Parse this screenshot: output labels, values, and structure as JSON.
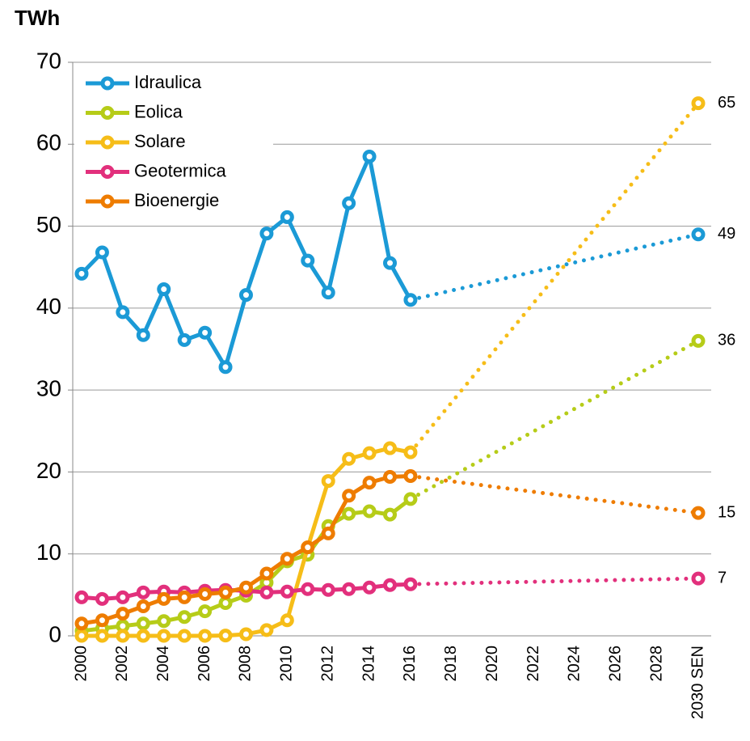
{
  "chart_data": {
    "type": "line",
    "y_label": "TWh",
    "categories": [
      "2000",
      null,
      "2002",
      null,
      "2004",
      null,
      "2006",
      null,
      "2008",
      null,
      "2010",
      null,
      "2012",
      null,
      "2014",
      null,
      "2016",
      null,
      "2018",
      null,
      "2020",
      null,
      "2022",
      null,
      "2024",
      null,
      "2026",
      null,
      "2028",
      null,
      "2030 SEN"
    ],
    "ylim": [
      0,
      70
    ],
    "yticks": [
      0,
      10,
      20,
      30,
      40,
      50,
      60,
      70
    ],
    "grid": true,
    "legend": "upper left",
    "series": [
      {
        "name": "Idraulica",
        "color": "#1b9ad6",
        "values": [
          44.2,
          46.8,
          39.5,
          36.7,
          42.3,
          36.1,
          37.0,
          32.8,
          41.6,
          49.1,
          51.1,
          45.8,
          41.9,
          52.8,
          58.5,
          45.5,
          41.0,
          null,
          null,
          null,
          null,
          null,
          null,
          null,
          null,
          null,
          null,
          null,
          null,
          null,
          49
        ]
      },
      {
        "name": "Eolica",
        "color": "#b6cc18",
        "values": [
          0.6,
          0.9,
          1.2,
          1.5,
          1.8,
          2.3,
          3.0,
          4.0,
          4.9,
          6.5,
          9.1,
          9.9,
          13.4,
          14.9,
          15.2,
          14.8,
          16.7,
          null,
          null,
          null,
          null,
          null,
          null,
          null,
          null,
          null,
          null,
          null,
          null,
          null,
          36
        ]
      },
      {
        "name": "Solare",
        "color": "#f6bd18",
        "values": [
          0,
          0,
          0,
          0,
          0,
          0,
          0,
          0.04,
          0.2,
          0.7,
          1.9,
          10.8,
          18.9,
          21.6,
          22.3,
          22.9,
          22.4,
          null,
          null,
          null,
          null,
          null,
          null,
          null,
          null,
          null,
          null,
          null,
          null,
          null,
          65
        ]
      },
      {
        "name": "Geotermica",
        "color": "#e2307c",
        "values": [
          4.7,
          4.5,
          4.7,
          5.3,
          5.4,
          5.3,
          5.5,
          5.6,
          5.5,
          5.3,
          5.4,
          5.7,
          5.6,
          5.7,
          5.9,
          6.2,
          6.3,
          null,
          null,
          null,
          null,
          null,
          null,
          null,
          null,
          null,
          null,
          null,
          null,
          null,
          7
        ]
      },
      {
        "name": "Bioenergie",
        "color": "#ee7c00",
        "values": [
          1.5,
          1.9,
          2.7,
          3.6,
          4.5,
          4.7,
          5.1,
          5.3,
          5.9,
          7.6,
          9.4,
          10.8,
          12.5,
          17.1,
          18.7,
          19.4,
          19.5,
          null,
          null,
          null,
          null,
          null,
          null,
          null,
          null,
          null,
          null,
          null,
          null,
          null,
          15
        ]
      }
    ]
  }
}
